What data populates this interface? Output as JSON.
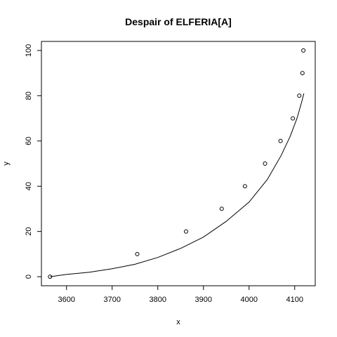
{
  "chart_data": {
    "type": "scatter",
    "title": "Despair of ELFERIA[A]",
    "xlabel": "x",
    "ylabel": "y",
    "xlim": [
      3545,
      4145
    ],
    "ylim": [
      -4,
      104
    ],
    "x_ticks": [
      3600,
      3700,
      3800,
      3900,
      4000,
      4100
    ],
    "y_ticks": [
      0,
      20,
      40,
      60,
      80,
      100
    ],
    "grid": false,
    "legend": "none",
    "points": {
      "x": [
        3564,
        3755,
        3862,
        3940,
        3991,
        4035,
        4069,
        4096,
        4110,
        4117,
        4119
      ],
      "y": [
        0,
        10,
        20,
        30,
        40,
        50,
        60,
        70,
        80,
        90,
        100
      ]
    },
    "fitted_curve": {
      "x": [
        3564,
        3600,
        3650,
        3700,
        3750,
        3800,
        3850,
        3900,
        3950,
        4000,
        4040,
        4070,
        4090,
        4105,
        4115,
        4120
      ],
      "y": [
        0,
        1,
        2,
        3.5,
        5.5,
        8.5,
        12.5,
        17.5,
        24.5,
        33,
        43,
        53.5,
        62,
        70,
        77,
        81
      ]
    }
  },
  "colors": {
    "background": "#ffffff",
    "ink": "#000000"
  }
}
